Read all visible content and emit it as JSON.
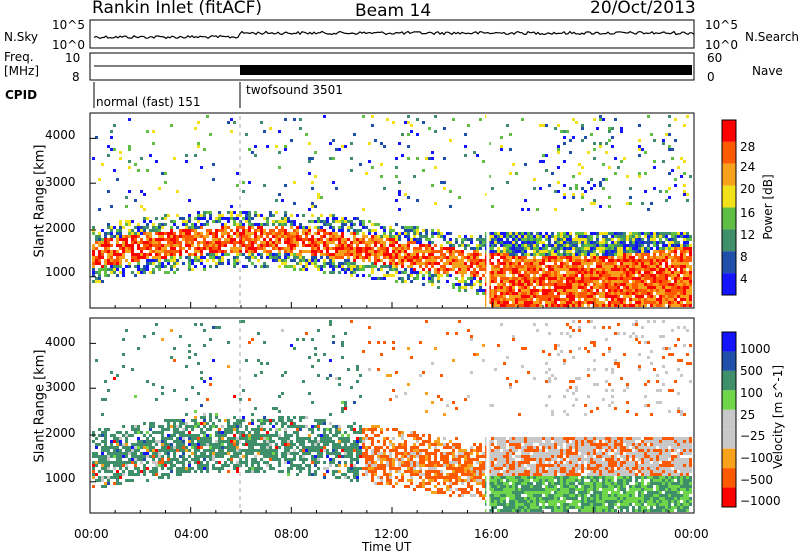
{
  "header": {
    "title": "Rankin Inlet (fitACF)",
    "beam": "Beam 14",
    "date": "20/Oct/2013"
  },
  "left_labels": {
    "nsky": "N.Sky",
    "freq": "Freq.",
    "mhz": "[MHz]",
    "cpid": "CPID"
  },
  "right_labels": {
    "nsearch": "N.Search",
    "nave": "Nave"
  },
  "top_ticks": {
    "sky_left": [
      "10^5",
      "10^0"
    ],
    "sky_right": [
      "10^5",
      "10^0"
    ],
    "freq_left": [
      "10",
      "8"
    ],
    "freq_right": [
      "60",
      "0"
    ]
  },
  "cpid_modes": [
    {
      "label": "normal (fast) 151",
      "start_hr": 0.3,
      "end_hr": 6.0
    },
    {
      "label": "twofsound 3501",
      "start_hr": 6.0,
      "end_hr": 24.0
    }
  ],
  "colors": {
    "power": [
      "#1414ff",
      "#1f4fa8",
      "#3f8f6a",
      "#5fbf45",
      "#f2e01a",
      "#f7a21a",
      "#ff5a00",
      "#ff0000"
    ],
    "velocity": [
      "#ff0000",
      "#ff5a00",
      "#f7a21a",
      "#c8c8c8",
      "#c8c8c8",
      "#6fd64a",
      "#3f8f6a",
      "#1f4fa8",
      "#1414ff"
    ]
  },
  "chart_data": [
    {
      "type": "heatmap",
      "name": "power",
      "xlabel": "",
      "ylabel": "Slant Range [km]",
      "x_range_hr": [
        0,
        24
      ],
      "ylim_km": [
        180,
        4500
      ],
      "y_ticks": [
        1000,
        2000,
        3000,
        4000
      ],
      "colorbar": {
        "label": "Power [dB]",
        "range": [
          0,
          32
        ],
        "ticks": [
          "4",
          "8",
          "12",
          "16",
          "20",
          "24",
          "28"
        ]
      }
    },
    {
      "type": "heatmap",
      "name": "velocity",
      "xlabel": "Time UT",
      "ylabel": "Slant Range [km]",
      "x_range_hr": [
        0,
        24
      ],
      "ylim_km": [
        180,
        4500
      ],
      "y_ticks": [
        1000,
        2000,
        3000,
        4000
      ],
      "x_ticks": [
        "00:00",
        "04:00",
        "08:00",
        "12:00",
        "16:00",
        "20:00",
        "00:00"
      ],
      "colorbar": {
        "label": "Velocity [m s^-1]",
        "ticks": [
          "1000",
          "500",
          "100",
          "25",
          "−25",
          "−100",
          "−500",
          "−1000"
        ]
      }
    }
  ]
}
